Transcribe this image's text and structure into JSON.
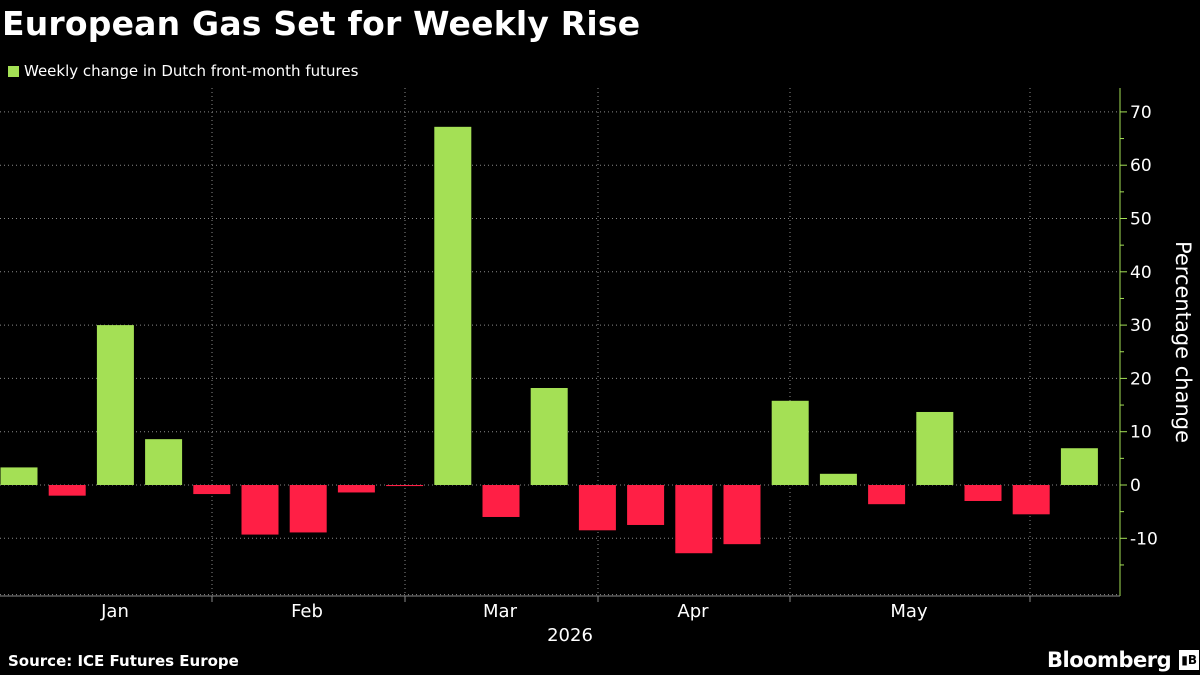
{
  "title": "European Gas Set for Weekly Rise",
  "source": "Source: ICE Futures Europe",
  "brand": "Bloomberg",
  "brand_logo": "bloomberg-logo",
  "colors": {
    "positive": "#a4e055",
    "negative": "#ff1f45",
    "background": "#000000",
    "axis": "#a4e055",
    "grid": "#8a8a8a"
  },
  "chart_data": {
    "type": "bar",
    "legend": "Weekly change in Dutch front-month futures",
    "legend_position": "top-left",
    "ylabel": "Percentage change",
    "year_label": "2026",
    "x": [
      "2026-01-02",
      "2026-01-09",
      "2026-01-16",
      "2026-01-23",
      "2026-01-30",
      "2026-02-06",
      "2026-02-13",
      "2026-02-20",
      "2026-02-27",
      "2026-03-06",
      "2026-03-13",
      "2026-03-20",
      "2026-03-27",
      "2026-04-03",
      "2026-04-10",
      "2026-04-17",
      "2026-04-24",
      "2026-05-01",
      "2026-05-08",
      "2026-05-15",
      "2026-05-22",
      "2026-05-29",
      "2026-06-05"
    ],
    "values": [
      3.3,
      -2.0,
      30.0,
      8.6,
      -1.7,
      -9.3,
      -8.9,
      -1.4,
      -0.2,
      67.2,
      -6.0,
      18.2,
      -8.5,
      -7.5,
      -12.8,
      -11.1,
      15.8,
      2.1,
      -3.6,
      13.7,
      -3.0,
      -5.5,
      6.9
    ],
    "month_labels": [
      "Jan",
      "Feb",
      "Mar",
      "Apr",
      "May"
    ],
    "yticks": [
      70,
      60,
      50,
      40,
      30,
      20,
      10,
      0,
      -10
    ],
    "ylim": [
      -20,
      75
    ],
    "grid": true,
    "yaxis_position": "right"
  }
}
